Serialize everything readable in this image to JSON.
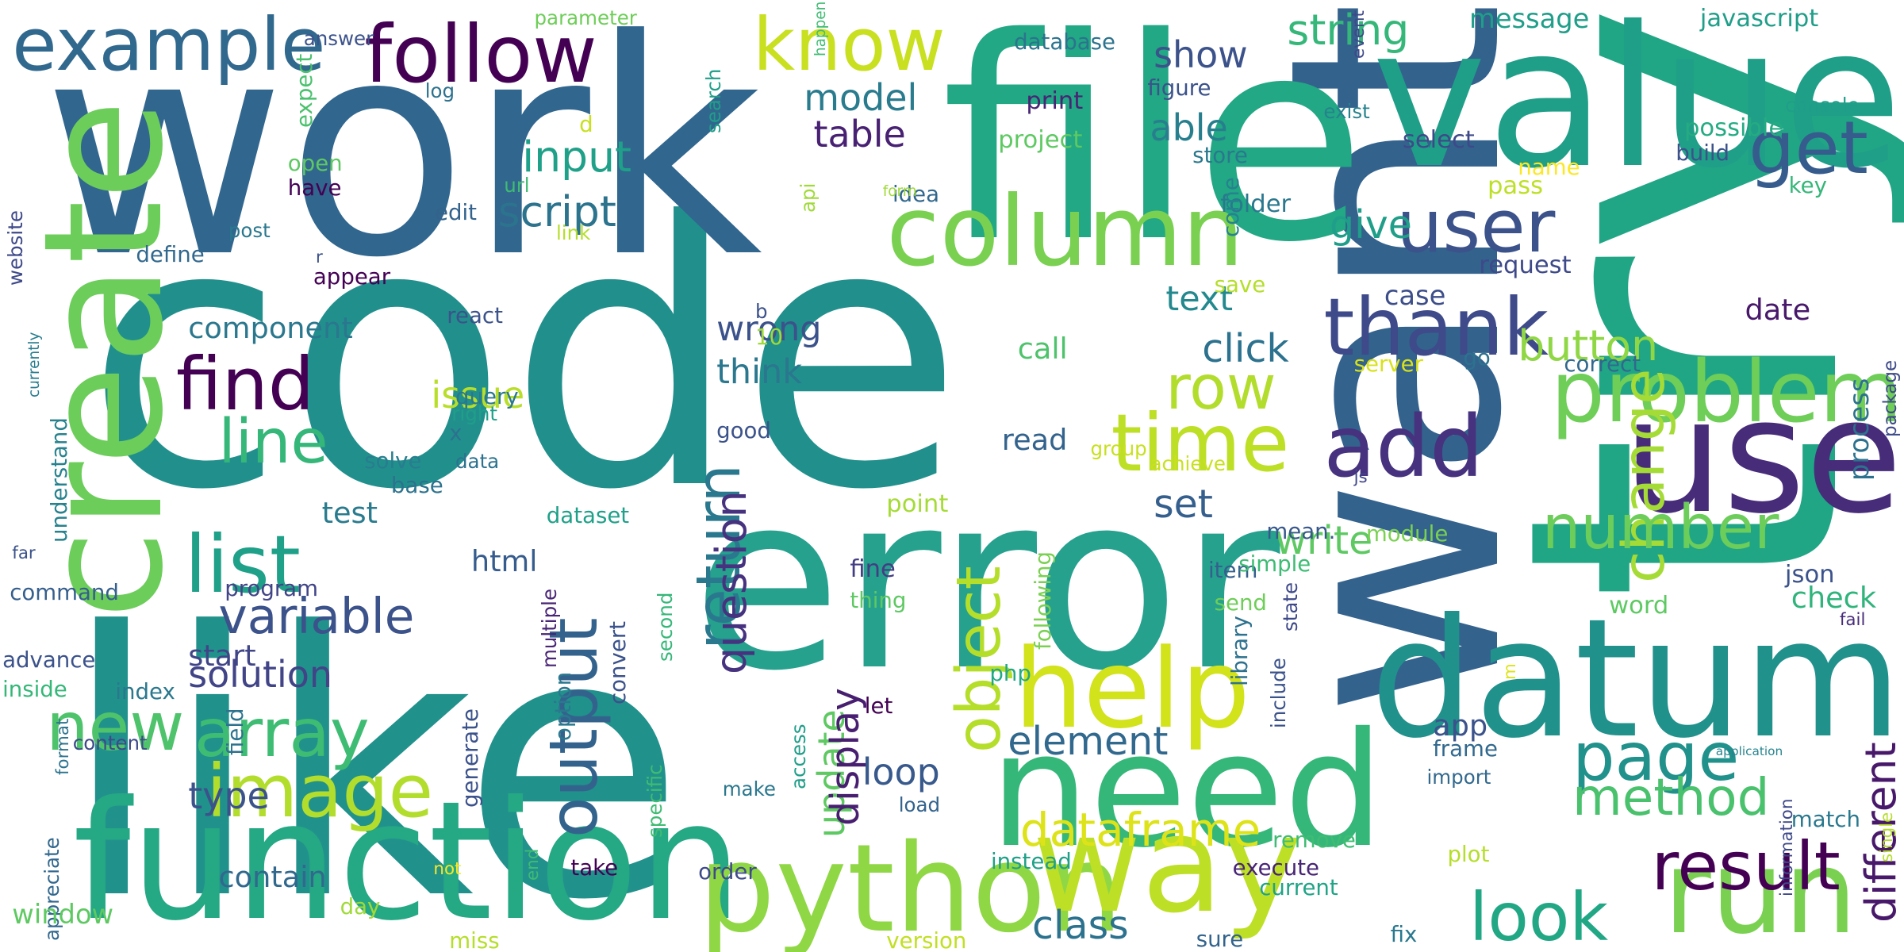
{
  "words": [
    {
      "text": "code",
      "color": "#21908d",
      "rotated": false
    },
    {
      "text": "try",
      "color": "#21a685",
      "rotated": true
    },
    {
      "text": "like",
      "color": "#21918c",
      "rotated": false
    },
    {
      "text": "want",
      "color": "#33628d",
      "rotated": true
    },
    {
      "text": "work",
      "color": "#31668e",
      "rotated": false
    },
    {
      "text": "file",
      "color": "#22a884",
      "rotated": false
    },
    {
      "text": "error",
      "color": "#25a18e",
      "rotated": false
    },
    {
      "text": "function",
      "color": "#25a884",
      "rotated": false
    },
    {
      "text": "value",
      "color": "#1f9f88",
      "rotated": false
    },
    {
      "text": "use",
      "color": "#472c7a",
      "rotated": false
    },
    {
      "text": "datum",
      "color": "#21918c",
      "rotated": false
    },
    {
      "text": "need",
      "color": "#35b779",
      "rotated": false
    },
    {
      "text": "python",
      "color": "#8fd744",
      "rotated": false
    },
    {
      "text": "way",
      "color": "#bddf26",
      "rotated": false
    },
    {
      "text": "run",
      "color": "#7ad151",
      "rotated": false
    },
    {
      "text": "create",
      "color": "#6ccd5a",
      "rotated": true
    },
    {
      "text": "column",
      "color": "#7ad151",
      "rotated": false
    },
    {
      "text": "help",
      "color": "#d2e21b",
      "rotated": false
    },
    {
      "text": "problem",
      "color": "#6ece58",
      "rotated": false
    },
    {
      "text": "follow",
      "color": "#440154",
      "rotated": false
    },
    {
      "text": "example",
      "color": "#31688e",
      "rotated": false
    },
    {
      "text": "know",
      "color": "#c8e020",
      "rotated": false
    },
    {
      "text": "thank",
      "color": "#3e4a89",
      "rotated": false
    },
    {
      "text": "add",
      "color": "#46327e",
      "rotated": false
    },
    {
      "text": "time",
      "color": "#bddf26",
      "rotated": false
    },
    {
      "text": "user",
      "color": "#3b528b",
      "rotated": false
    },
    {
      "text": "get",
      "color": "#365c8d",
      "rotated": false
    },
    {
      "text": "find",
      "color": "#440154",
      "rotated": false
    },
    {
      "text": "list",
      "color": "#1fa088",
      "rotated": false
    },
    {
      "text": "image",
      "color": "#b2dd2d",
      "rotated": false
    },
    {
      "text": "array",
      "color": "#3fbc73",
      "rotated": false
    },
    {
      "text": "new",
      "color": "#4ec36b",
      "rotated": false
    },
    {
      "text": "output",
      "color": "#33638d",
      "rotated": true
    },
    {
      "text": "return",
      "color": "#2a788e",
      "rotated": true
    },
    {
      "text": "object",
      "color": "#b5de2b",
      "rotated": true
    },
    {
      "text": "change",
      "color": "#a5db36",
      "rotated": true
    },
    {
      "text": "page",
      "color": "#21918c",
      "rotated": false
    },
    {
      "text": "look",
      "color": "#22a785",
      "rotated": false
    },
    {
      "text": "result",
      "color": "#440154",
      "rotated": false
    },
    {
      "text": "number",
      "color": "#6ccd5a",
      "rotated": false
    },
    {
      "text": "method",
      "color": "#4ac16d",
      "rotated": false
    },
    {
      "text": "different",
      "color": "#48186a",
      "rotated": true
    },
    {
      "text": "row",
      "color": "#b2dd2d",
      "rotated": false
    },
    {
      "text": "line",
      "color": "#35b779",
      "rotated": false
    },
    {
      "text": "variable",
      "color": "#3b528b",
      "rotated": false
    },
    {
      "text": "question",
      "color": "#46327e",
      "rotated": true
    },
    {
      "text": "dataframe",
      "color": "#dde318",
      "rotated": false
    },
    {
      "text": "element",
      "color": "#31688e",
      "rotated": false
    },
    {
      "text": "class",
      "color": "#2c728e",
      "rotated": false
    },
    {
      "text": "button",
      "color": "#8fd744",
      "rotated": false
    },
    {
      "text": "string",
      "color": "#35b779",
      "rotated": false
    },
    {
      "text": "input",
      "color": "#1fa088",
      "rotated": false
    },
    {
      "text": "script",
      "color": "#2c738e",
      "rotated": false
    },
    {
      "text": "table",
      "color": "#482173",
      "rotated": false
    },
    {
      "text": "model",
      "color": "#297b8e",
      "rotated": false
    },
    {
      "text": "show",
      "color": "#3b528b",
      "rotated": false
    },
    {
      "text": "able",
      "color": "#277f8e",
      "rotated": false
    },
    {
      "text": "give",
      "color": "#1f9e89",
      "rotated": false
    },
    {
      "text": "click",
      "color": "#2c728e",
      "rotated": false
    },
    {
      "text": "set",
      "color": "#355f8d",
      "rotated": false
    },
    {
      "text": "write",
      "color": "#5ec962",
      "rotated": false
    },
    {
      "text": "text",
      "color": "#23898e",
      "rotated": false
    },
    {
      "text": "solution",
      "color": "#414487",
      "rotated": false
    },
    {
      "text": "type",
      "color": "#3b528b",
      "rotated": false
    },
    {
      "text": "issue",
      "color": "#b8de29",
      "rotated": false
    },
    {
      "text": "update",
      "color": "#5ec962",
      "rotated": true
    },
    {
      "text": "display",
      "color": "#481f70",
      "rotated": true
    },
    {
      "text": "loop",
      "color": "#38598c",
      "rotated": false
    },
    {
      "text": "wrong",
      "color": "#3b528b",
      "rotated": false
    },
    {
      "text": "think",
      "color": "#2a778e",
      "rotated": false
    },
    {
      "text": "component",
      "color": "#2a778e",
      "rotated": false
    },
    {
      "text": "test",
      "color": "#297b8e",
      "rotated": false
    },
    {
      "text": "start",
      "color": "#404588",
      "rotated": false
    },
    {
      "text": "contain",
      "color": "#31688e",
      "rotated": false
    },
    {
      "text": "html",
      "color": "#365c8d",
      "rotated": false
    },
    {
      "text": "call",
      "color": "#4ec36b",
      "rotated": false
    },
    {
      "text": "read",
      "color": "#33638d",
      "rotated": false
    },
    {
      "text": "date",
      "color": "#48186a",
      "rotated": false
    },
    {
      "text": "case",
      "color": "#3d4e8a",
      "rotated": false
    },
    {
      "text": "check",
      "color": "#2fb47c",
      "rotated": false
    },
    {
      "text": "app",
      "color": "#3b528b",
      "rotated": false
    },
    {
      "text": "message",
      "color": "#1f9e89",
      "rotated": false
    },
    {
      "text": "javascript",
      "color": "#1f9e89",
      "rotated": false
    },
    {
      "text": "request",
      "color": "#3e4989",
      "rotated": false
    },
    {
      "text": "database",
      "color": "#2c738e",
      "rotated": false
    },
    {
      "text": "print",
      "color": "#482475",
      "rotated": false
    },
    {
      "text": "figure",
      "color": "#3b528b",
      "rotated": false
    },
    {
      "text": "project",
      "color": "#5ec962",
      "rotated": false
    },
    {
      "text": "store",
      "color": "#2a788e",
      "rotated": false
    },
    {
      "text": "select",
      "color": "#3e4989",
      "rotated": false
    },
    {
      "text": "possible",
      "color": "#25ab82",
      "rotated": false
    },
    {
      "text": "build",
      "color": "#3b528b",
      "rotated": false
    },
    {
      "text": "key",
      "color": "#35b779",
      "rotated": false
    },
    {
      "text": "pass",
      "color": "#bddf26",
      "rotated": false
    },
    {
      "text": "name",
      "color": "#fde725",
      "rotated": false
    },
    {
      "text": "idea",
      "color": "#31688e",
      "rotated": false
    },
    {
      "text": "folder",
      "color": "#2a788e",
      "rotated": false
    },
    {
      "text": "save",
      "color": "#b5de2b",
      "rotated": false
    },
    {
      "text": "come",
      "color": "#26828e",
      "rotated": true
    },
    {
      "text": "server",
      "color": "#d8e219",
      "rotated": false
    },
    {
      "text": "correct",
      "color": "#31688e",
      "rotated": false
    },
    {
      "text": "go",
      "color": "#2c728e",
      "rotated": false
    },
    {
      "text": "package",
      "color": "#3e4a89",
      "rotated": true
    },
    {
      "text": "process",
      "color": "#2c728e",
      "rotated": true
    },
    {
      "text": "json",
      "color": "#3b528b",
      "rotated": false
    },
    {
      "text": "word",
      "color": "#5ec962",
      "rotated": false
    },
    {
      "text": "fail",
      "color": "#472c7a",
      "rotated": false
    },
    {
      "text": "mean.",
      "color": "#38588c",
      "rotated": false
    },
    {
      "text": "module",
      "color": "#7ad151",
      "rotated": false
    },
    {
      "text": "item",
      "color": "#355f8d",
      "rotated": false
    },
    {
      "text": "send",
      "color": "#6ece58",
      "rotated": false
    },
    {
      "text": "simple",
      "color": "#3dbc74",
      "rotated": false
    },
    {
      "text": "library",
      "color": "#2d718e",
      "rotated": true
    },
    {
      "text": "state",
      "color": "#3e4989",
      "rotated": true
    },
    {
      "text": "import",
      "color": "#31688e",
      "rotated": false
    },
    {
      "text": "include",
      "color": "#3b528b",
      "rotated": true
    },
    {
      "text": "remove",
      "color": "#3fbc73",
      "rotated": false
    },
    {
      "text": "frame",
      "color": "#31688e",
      "rotated": false
    },
    {
      "text": "plot",
      "color": "#b5de2b",
      "rotated": false
    },
    {
      "text": "execute",
      "color": "#482475",
      "rotated": false
    },
    {
      "text": "current",
      "color": "#20a386",
      "rotated": false
    },
    {
      "text": "sure",
      "color": "#33638d",
      "rotated": false
    },
    {
      "text": "fix",
      "color": "#2a788e",
      "rotated": false
    },
    {
      "text": "match",
      "color": "#2a788e",
      "rotated": false
    },
    {
      "text": "information",
      "color": "#3e4989",
      "rotated": true
    },
    {
      "text": "single",
      "color": "#b5de2b",
      "rotated": true
    },
    {
      "text": "m",
      "color": "#dde318",
      "rotated": true
    },
    {
      "text": "application",
      "color": "#25848e",
      "rotated": false
    },
    {
      "text": "achieve",
      "color": "#c8e020",
      "rotated": false
    },
    {
      "text": "js",
      "color": "#404588",
      "rotated": false
    },
    {
      "text": "group",
      "color": "#c8e020",
      "rotated": false
    },
    {
      "text": "point",
      "color": "#a5db36",
      "rotated": false
    },
    {
      "text": "fine",
      "color": "#433d84",
      "rotated": false
    },
    {
      "text": "thing",
      "color": "#5ec962",
      "rotated": false
    },
    {
      "text": "following",
      "color": "#7ad151",
      "rotated": true
    },
    {
      "text": "php",
      "color": "#22a884",
      "rotated": false
    },
    {
      "text": "let",
      "color": "#440154",
      "rotated": false
    },
    {
      "text": "load",
      "color": "#33638d",
      "rotated": false
    },
    {
      "text": "instead",
      "color": "#1fa088",
      "rotated": false
    },
    {
      "text": "version",
      "color": "#c2df23",
      "rotated": false
    },
    {
      "text": "order",
      "color": "#3e4a89",
      "rotated": false
    },
    {
      "text": "take",
      "color": "#440154",
      "rotated": false
    },
    {
      "text": "day",
      "color": "#a0da39",
      "rotated": false
    },
    {
      "text": "miss",
      "color": "#b5de2b",
      "rotated": false
    },
    {
      "text": "not",
      "color": "#fde725",
      "rotated": false
    },
    {
      "text": "end",
      "color": "#3fbc73",
      "rotated": true
    },
    {
      "text": "specific",
      "color": "#3fbc73",
      "rotated": true
    },
    {
      "text": "convert",
      "color": "#3b528b",
      "rotated": true
    },
    {
      "text": "option",
      "color": "#2a788e",
      "rotated": true
    },
    {
      "text": "multiple",
      "color": "#482475",
      "rotated": true
    },
    {
      "text": "generate",
      "color": "#3b528b",
      "rotated": true
    },
    {
      "text": "access",
      "color": "#1f9e89",
      "rotated": true
    },
    {
      "text": "second",
      "color": "#35b779",
      "rotated": true
    },
    {
      "text": "make",
      "color": "#2a788e",
      "rotated": false
    },
    {
      "text": "dataset",
      "color": "#1fa088",
      "rotated": false
    },
    {
      "text": "program",
      "color": "#414487",
      "rotated": false
    },
    {
      "text": "field",
      "color": "#2c728e",
      "rotated": true
    },
    {
      "text": "index",
      "color": "#2a788e",
      "rotated": false
    },
    {
      "text": "content",
      "color": "#3e4989",
      "rotated": false
    },
    {
      "text": "format",
      "color": "#2c738e",
      "rotated": true
    },
    {
      "text": "appreciate",
      "color": "#31688e",
      "rotated": true
    },
    {
      "text": "window",
      "color": "#5ec962",
      "rotated": false
    },
    {
      "text": "inside",
      "color": "#35b779",
      "rotated": false
    },
    {
      "text": "advance",
      "color": "#3b528b",
      "rotated": false
    },
    {
      "text": "command",
      "color": "#355f8d",
      "rotated": false
    },
    {
      "text": "understand",
      "color": "#26828e",
      "rotated": true
    },
    {
      "text": "far",
      "color": "#3b528b",
      "rotated": false
    },
    {
      "text": "solve",
      "color": "#287d8e",
      "rotated": false
    },
    {
      "text": "base",
      "color": "#2c728e",
      "rotated": false
    },
    {
      "text": "x",
      "color": "#2c728e",
      "rotated": false
    },
    {
      "text": "data",
      "color": "#2c728e",
      "rotated": false
    },
    {
      "text": "right",
      "color": "#1f9e89",
      "rotated": false
    },
    {
      "text": "query",
      "color": "#2a788e",
      "rotated": false
    },
    {
      "text": "react",
      "color": "#3b528b",
      "rotated": false
    },
    {
      "text": "appear",
      "color": "#440154",
      "rotated": false
    },
    {
      "text": "r",
      "color": "#3b528b",
      "rotated": false
    },
    {
      "text": "define",
      "color": "#31688e",
      "rotated": false
    },
    {
      "text": "currently",
      "color": "#287d8e",
      "rotated": true
    },
    {
      "text": "website",
      "color": "#3e4989",
      "rotated": true
    },
    {
      "text": "post",
      "color": "#2a788e",
      "rotated": false
    },
    {
      "text": "have",
      "color": "#440154",
      "rotated": false
    },
    {
      "text": "open",
      "color": "#5ec962",
      "rotated": false
    },
    {
      "text": "expect",
      "color": "#4ac16d",
      "rotated": true
    },
    {
      "text": "edit",
      "color": "#33638d",
      "rotated": false
    },
    {
      "text": "url",
      "color": "#3fbc73",
      "rotated": false
    },
    {
      "text": "link",
      "color": "#b5de2b",
      "rotated": false
    },
    {
      "text": "d",
      "color": "#c8e020",
      "rotated": false
    },
    {
      "text": "log",
      "color": "#2c728e",
      "rotated": false
    },
    {
      "text": "answer",
      "color": "#3b528b",
      "rotated": false
    },
    {
      "text": "parameter",
      "color": "#6ece58",
      "rotated": false
    },
    {
      "text": "happen",
      "color": "#3fbc73",
      "rotated": true
    },
    {
      "text": "search",
      "color": "#1f9e89",
      "rotated": true
    },
    {
      "text": "api",
      "color": "#a0da39",
      "rotated": true
    },
    {
      "text": "exist",
      "color": "#26828e",
      "rotated": false
    },
    {
      "text": "event",
      "color": "#3e4989",
      "rotated": true
    },
    {
      "text": "console",
      "color": "#1f9e89",
      "rotated": false
    },
    {
      "text": "form",
      "color": "#a0da39",
      "rotated": false
    },
    {
      "text": "good",
      "color": "#3b528b",
      "rotated": false
    },
    {
      "text": "10",
      "color": "#a0da39",
      "rotated": false
    },
    {
      "text": "b",
      "color": "#3b528b",
      "rotated": false
    }
  ]
}
